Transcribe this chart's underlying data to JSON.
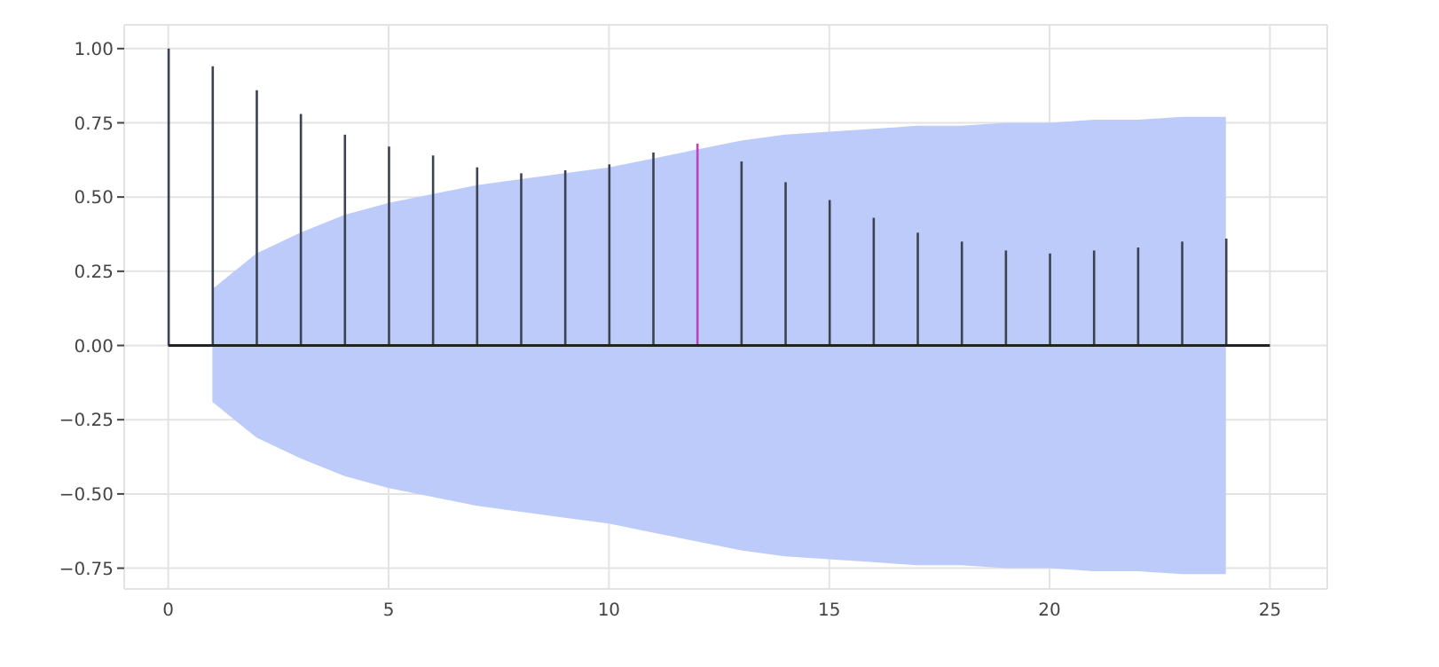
{
  "chart_data": {
    "type": "bar",
    "grid": true,
    "x": [
      0,
      1,
      2,
      3,
      4,
      5,
      6,
      7,
      8,
      9,
      10,
      11,
      12,
      13,
      14,
      15,
      16,
      17,
      18,
      19,
      20,
      21,
      22,
      23,
      24
    ],
    "series": [
      {
        "type": "line",
        "color": "#222222",
        "x": [
          0,
          1,
          2,
          3,
          4,
          5,
          6,
          7,
          8,
          9,
          10,
          11,
          12,
          13,
          14,
          15,
          16,
          17,
          18,
          19,
          20,
          21,
          22,
          23,
          24,
          25
        ],
        "values": [
          0,
          0,
          0,
          0,
          0,
          0,
          0,
          0,
          0,
          0,
          0,
          0,
          0,
          0,
          0,
          0,
          0,
          0,
          0,
          0,
          0,
          0,
          0,
          0,
          0,
          0
        ],
        "lower": [
          null,
          -0.19,
          -0.31,
          -0.38,
          -0.44,
          -0.48,
          -0.51,
          -0.54,
          -0.56,
          -0.58,
          -0.6,
          -0.63,
          -0.66,
          -0.69,
          -0.71,
          -0.72,
          -0.73,
          -0.74,
          -0.74,
          -0.75,
          -0.75,
          -0.76,
          -0.76,
          -0.77,
          -0.77,
          null
        ],
        "upper": [
          null,
          0.19,
          0.31,
          0.38,
          0.44,
          0.48,
          0.51,
          0.54,
          0.56,
          0.58,
          0.6,
          0.63,
          0.66,
          0.69,
          0.71,
          0.72,
          0.73,
          0.74,
          0.74,
          0.75,
          0.75,
          0.76,
          0.76,
          0.77,
          0.77,
          null
        ]
      },
      {
        "colors": [
          "#3b4252",
          "#3b4252",
          "#3b4252",
          "#3b4252",
          "#3b4252",
          "#3b4252",
          "#3b4252",
          "#3b4252",
          "#3b4252",
          "#3b4252",
          "#3b4252",
          "#3b4252",
          "#c040c0",
          "#3b4252",
          "#3b4252",
          "#3b4252",
          "#3b4252",
          "#3b4252",
          "#3b4252",
          "#3b4252",
          "#3b4252",
          "#3b4252",
          "#3b4252",
          "#3b4252",
          "#3b4252"
        ],
        "values": [
          1.0,
          0.94,
          0.86,
          0.78,
          0.71,
          0.67,
          0.64,
          0.6,
          0.58,
          0.59,
          0.61,
          0.65,
          0.68,
          0.62,
          0.55,
          0.49,
          0.43,
          0.38,
          0.35,
          0.32,
          0.31,
          0.32,
          0.33,
          0.35,
          0.36
        ]
      }
    ],
    "xlim": [
      -1,
      26.3
    ],
    "xticks": [
      0,
      5,
      10,
      15,
      20,
      25
    ],
    "ylim": [
      -0.82,
      1.08
    ],
    "yticks": [
      {
        "value": -0.75,
        "label": "−0.75"
      },
      {
        "value": -0.5,
        "label": "−0.50"
      },
      {
        "value": -0.25,
        "label": "−0.25"
      },
      {
        "value": 0,
        "label": "0.00"
      },
      {
        "value": 0.25,
        "label": "0.25"
      },
      {
        "value": 0.5,
        "label": "0.50"
      },
      {
        "value": 0.75,
        "label": "0.75"
      },
      {
        "value": 1,
        "label": "1.00"
      }
    ]
  }
}
